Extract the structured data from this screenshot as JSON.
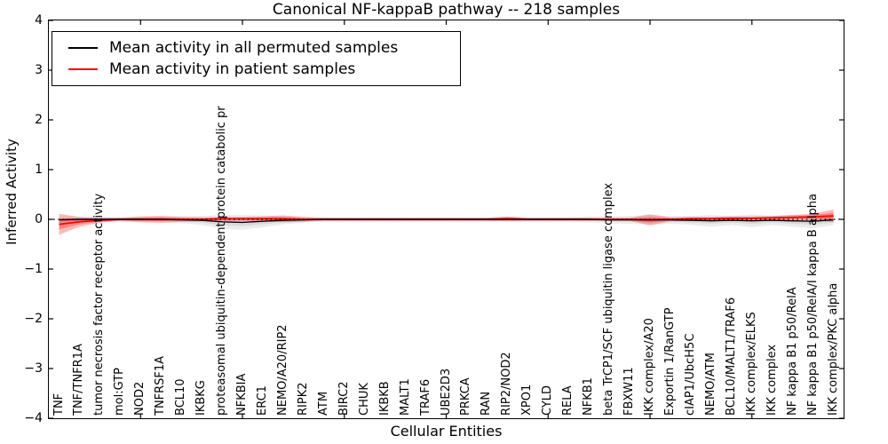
{
  "legend": {
    "items": [
      {
        "label": "Mean activity in all permuted samples",
        "color": "#000000"
      },
      {
        "label": "Mean activity in patient samples",
        "color": "#ff0000"
      }
    ]
  },
  "chart_data": {
    "type": "line",
    "title": "Canonical NF-kappaB pathway -- 218 samples",
    "xlabel": "Cellular Entities",
    "ylabel": "Inferred Activity",
    "ylim": [
      -4,
      4
    ],
    "yticks": [
      4,
      3,
      2,
      1,
      0,
      -1,
      -2,
      -3,
      -4
    ],
    "xtick_positions": [
      5,
      10,
      15,
      20,
      25,
      30,
      35
    ],
    "grid": false,
    "legend_position": "upper left",
    "zero_line": {
      "value": 0,
      "style": "dotted",
      "color": "#000000"
    },
    "categories": [
      "TNF",
      "TNF/TNFR1A",
      "tumor necrosis factor receptor activity",
      "mol:GTP",
      "NOD2",
      "TNFRSF1A",
      "BCL10",
      "IKBKG",
      "proteasomal ubiquitin-dependent protein catabolic pr",
      "NFKBIA",
      "ERC1",
      "NEMO/A20/RIP2",
      "RIPK2",
      "ATM",
      "BIRC2",
      "CHUK",
      "IKBKB",
      "MALT1",
      "TRAF6",
      "UBE2D3",
      "PRKCA",
      "RAN",
      "RIP2/NOD2",
      "XPO1",
      "CYLD",
      "RELA",
      "NFKB1",
      "beta TrCP1/SCF ubiquitin ligase complex",
      "FBXW11",
      "IKK complex/A20",
      "Exportin 1/RanGTP",
      "cIAP1/UbcH5C",
      "NEMO/ATM",
      "BCL10/MALT1/TRAF6",
      "IKK complex/ELKS",
      "IKK complex",
      "NF kappa B1 p50/RelA",
      "NF kappa B1 p50/RelA/I kappa B alpha",
      "IKK complex/PKC alpha"
    ],
    "series": [
      {
        "name": "Mean activity in all permuted samples",
        "color": "#000000",
        "band_fill": "rgba(0,0,0,0.075)",
        "values": [
          -0.01,
          0,
          0,
          0,
          0,
          0,
          -0.01,
          -0.02,
          -0.05,
          -0.06,
          -0.04,
          -0.02,
          -0.01,
          0,
          0,
          0,
          0,
          0,
          0,
          0,
          0,
          0,
          0,
          0,
          0,
          0,
          0,
          -0.01,
          -0.01,
          -0.01,
          -0.01,
          -0.02,
          -0.03,
          -0.02,
          -0.03,
          -0.02,
          -0.03,
          -0.04,
          -0.01
        ],
        "std": [
          0.06,
          0.05,
          0.05,
          0.05,
          0.05,
          0.06,
          0.07,
          0.09,
          0.14,
          0.15,
          0.12,
          0.08,
          0.06,
          0.05,
          0.05,
          0.05,
          0.05,
          0.05,
          0.05,
          0.05,
          0.05,
          0.05,
          0.05,
          0.05,
          0.05,
          0.05,
          0.06,
          0.07,
          0.08,
          0.1,
          0.08,
          0.09,
          0.12,
          0.09,
          0.13,
          0.09,
          0.12,
          0.14,
          0.11
        ]
      },
      {
        "name": "Mean activity in patient samples",
        "color": "#ff0000",
        "band_fill": "rgba(255,0,0,0.27)",
        "values": [
          -0.1,
          -0.05,
          -0.02,
          0,
          0,
          0,
          0,
          0,
          0.01,
          0.01,
          0.01,
          0.01,
          0,
          0,
          0,
          0,
          0,
          0,
          0,
          0,
          0,
          0,
          0.01,
          0,
          0,
          0,
          0,
          0,
          0,
          -0.01,
          0,
          0.01,
          0.01,
          0.02,
          0.02,
          0.03,
          0.04,
          0.05,
          0.07
        ],
        "std": [
          0.21,
          0.1,
          0.05,
          0.03,
          0.06,
          0.07,
          0.05,
          0.04,
          0.04,
          0.04,
          0.05,
          0.07,
          0.05,
          0.03,
          0.03,
          0.03,
          0.03,
          0.03,
          0.03,
          0.03,
          0.03,
          0.03,
          0.05,
          0.03,
          0.03,
          0.03,
          0.03,
          0.03,
          0.03,
          0.11,
          0.04,
          0.04,
          0.04,
          0.04,
          0.04,
          0.04,
          0.05,
          0.06,
          0.13
        ]
      }
    ]
  }
}
